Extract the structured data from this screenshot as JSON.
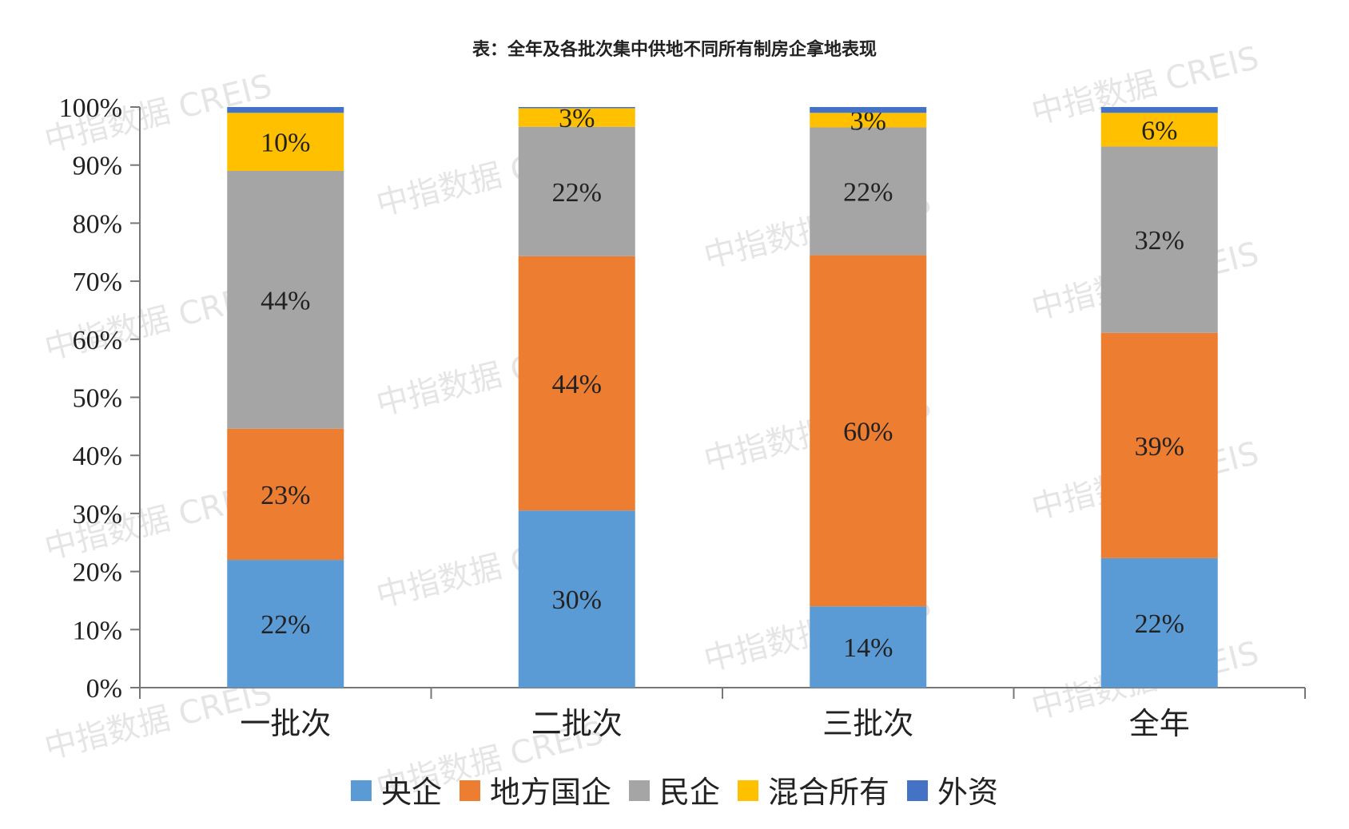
{
  "title": "表：全年及各批次集中供地不同所有制房企拿地表现",
  "watermark": "中指数据 CREIS",
  "chart_data": {
    "type": "bar",
    "stacked": true,
    "categories": [
      "一批次",
      "二批次",
      "三批次",
      "全年"
    ],
    "ylim": [
      0,
      100
    ],
    "yticks": [
      "0%",
      "10%",
      "20%",
      "30%",
      "40%",
      "50%",
      "60%",
      "70%",
      "80%",
      "90%",
      "100%"
    ],
    "grid": false,
    "legend_position": "bottom",
    "series": [
      {
        "name": "央企",
        "color": "#5b9bd5",
        "values": [
          22,
          30.5,
          14,
          22.3
        ],
        "labels": [
          "22%",
          "30%",
          "14%",
          "22%"
        ]
      },
      {
        "name": "地方国企",
        "color": "#ed7d31",
        "values": [
          22.6,
          43.8,
          60.5,
          38.8
        ],
        "labels": [
          "23%",
          "44%",
          "60%",
          "39%"
        ]
      },
      {
        "name": "民企",
        "color": "#a5a5a5",
        "values": [
          44.4,
          22.3,
          22,
          32.1
        ],
        "labels": [
          "44%",
          "22%",
          "22%",
          "32%"
        ]
      },
      {
        "name": "混合所有",
        "color": "#ffc000",
        "values": [
          10,
          3.2,
          2.5,
          5.8
        ],
        "labels": [
          "10%",
          "3%",
          "3%",
          "6%"
        ]
      },
      {
        "name": "外资",
        "color": "#4472c4",
        "values": [
          1,
          0.2,
          1,
          1
        ],
        "labels": [
          "",
          "",
          "",
          ""
        ]
      }
    ]
  }
}
